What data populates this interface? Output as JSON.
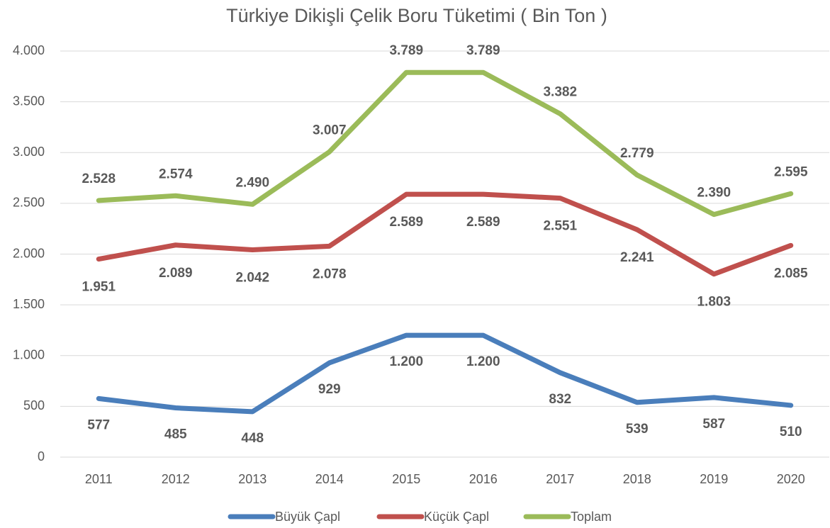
{
  "chart_data": {
    "type": "line",
    "title": "Türkiye Dikişli Çelik Boru Tüketimi ( Bin Ton )",
    "categories": [
      "2011",
      "2012",
      "2013",
      "2014",
      "2015",
      "2016",
      "2017",
      "2018",
      "2019",
      "2020"
    ],
    "series": [
      {
        "name": "Büyük Çapl",
        "color": "#4a7ebb",
        "values": [
          577,
          485,
          448,
          929,
          1200,
          1200,
          832,
          539,
          587,
          510
        ],
        "value_labels": [
          "577",
          "485",
          "448",
          "929",
          "1.200",
          "1.200",
          "832",
          "539",
          "587",
          "510"
        ]
      },
      {
        "name": "Küçük Çapl",
        "color": "#c0504d",
        "values": [
          1951,
          2089,
          2042,
          2078,
          2589,
          2589,
          2551,
          2241,
          1803,
          2085
        ],
        "value_labels": [
          "1.951",
          "2.089",
          "2.042",
          "2.078",
          "2.589",
          "2.589",
          "2.551",
          "2.241",
          "1.803",
          "2.085"
        ]
      },
      {
        "name": "Toplam",
        "color": "#9bbb59",
        "values": [
          2528,
          2574,
          2490,
          3007,
          3789,
          3789,
          3382,
          2779,
          2390,
          2595
        ],
        "value_labels": [
          "2.528",
          "2.574",
          "2.490",
          "3.007",
          "3.789",
          "3.789",
          "3.382",
          "2.779",
          "2.390",
          "2.595"
        ]
      }
    ],
    "ylim": [
      0,
      4000
    ],
    "yticks": [
      0,
      500,
      {
        "value": 1000,
        "label": "1.000"
      },
      {
        "value": 1500,
        "label": "1.500"
      },
      {
        "value": 2000,
        "label": "2.000"
      },
      {
        "value": 2500,
        "label": "2.500"
      },
      {
        "value": 3000,
        "label": "3.000"
      },
      {
        "value": 3500,
        "label": "3.500"
      },
      {
        "value": 4000,
        "label": "4.000"
      }
    ],
    "grid": true,
    "legend": "bottom"
  }
}
